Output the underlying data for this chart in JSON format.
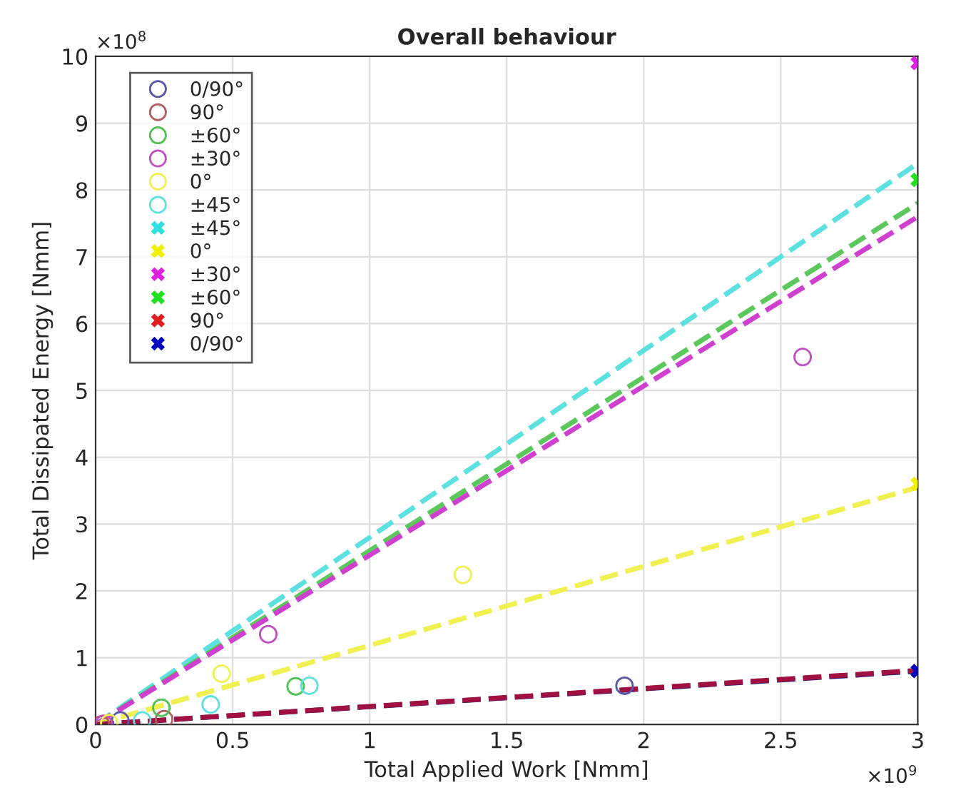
{
  "chart_data": {
    "type": "scatter",
    "title": "Overall behaviour",
    "xlabel": "Total Applied Work [Nmm]",
    "ylabel": "Total Dissipated Energy [Nmm]",
    "xlim": [
      0,
      3
    ],
    "ylim": [
      0,
      10
    ],
    "xticks": [
      0,
      0.5,
      1,
      1.5,
      2,
      2.5,
      3
    ],
    "yticks": [
      0,
      1,
      2,
      3,
      4,
      5,
      6,
      7,
      8,
      9,
      10
    ],
    "grid": true,
    "legend": "top left",
    "annotations": [
      "×10$^{8}$",
      "×10$^{9}$"
    ],
    "series": [
      {
        "type": "line",
        "color": "#5ce0e0",
        "x": [
          0,
          3
        ],
        "values": [
          0,
          8.4
        ],
        "marker": "none",
        "line_style": "dashed"
      },
      {
        "type": "line",
        "color": "#5cc85c",
        "x": [
          0,
          3
        ],
        "values": [
          0,
          7.8
        ],
        "marker": "none",
        "line_style": "dashed"
      },
      {
        "type": "line",
        "color": "#d040d0",
        "x": [
          0,
          3
        ],
        "values": [
          0,
          7.6
        ],
        "marker": "none",
        "line_style": "dashed"
      },
      {
        "type": "line",
        "color": "#f0f050",
        "x": [
          0,
          3
        ],
        "values": [
          0,
          3.55
        ],
        "marker": "none",
        "line_style": "dashed"
      },
      {
        "type": "line",
        "color": "#202080",
        "x": [
          0,
          3
        ],
        "values": [
          0,
          0.8
        ],
        "marker": "none",
        "line_style": "dashed"
      },
      {
        "type": "line",
        "color": "#a01040",
        "x": [
          0,
          3
        ],
        "values": [
          0,
          0.81
        ],
        "marker": "none",
        "line_style": "dashed"
      },
      {
        "name": "0/90°",
        "color": "#5858a8",
        "x": [
          0.09,
          1.93
        ],
        "values": [
          0.06,
          0.58
        ],
        "marker": "circle"
      },
      {
        "name": "90°",
        "color": "#b06060",
        "x": [
          0.02,
          0.25
        ],
        "values": [
          0.0,
          0.08
        ],
        "marker": "circle"
      },
      {
        "name": "±60°",
        "color": "#50c050",
        "x": [
          0.24,
          0.73
        ],
        "values": [
          0.25,
          0.57
        ],
        "marker": "circle"
      },
      {
        "name": "±30°",
        "color": "#c050c0",
        "x": [
          0.03,
          0.63,
          2.58
        ],
        "values": [
          0.01,
          1.35,
          5.5
        ],
        "marker": "circle"
      },
      {
        "name": "0°",
        "color": "#f0f050",
        "x": [
          0.05,
          0.46,
          1.34
        ],
        "values": [
          0.02,
          0.76,
          2.24
        ],
        "marker": "circle"
      },
      {
        "name": "±45°",
        "color": "#60e0e0",
        "x": [
          0.17,
          0.42,
          0.78
        ],
        "values": [
          0.06,
          0.3,
          0.58
        ],
        "marker": "circle"
      },
      {
        "name": "±45°",
        "color": "#30e0e0",
        "marker": "cross"
      },
      {
        "name": "0°",
        "color": "#f0f000",
        "x": [
          3
        ],
        "values": [
          3.6
        ],
        "marker": "cross"
      },
      {
        "name": "±30°",
        "color": "#e020e0",
        "x": [
          3
        ],
        "values": [
          9.9
        ],
        "marker": "cross"
      },
      {
        "name": "±60°",
        "color": "#20e020",
        "x": [
          3
        ],
        "values": [
          8.15
        ],
        "marker": "cross"
      },
      {
        "name": "90°",
        "color": "#e02020",
        "marker": "cross"
      },
      {
        "name": "0/90°",
        "color": "#0000c0",
        "x": [
          3
        ],
        "values": [
          0.8
        ],
        "marker": "cross"
      }
    ]
  }
}
